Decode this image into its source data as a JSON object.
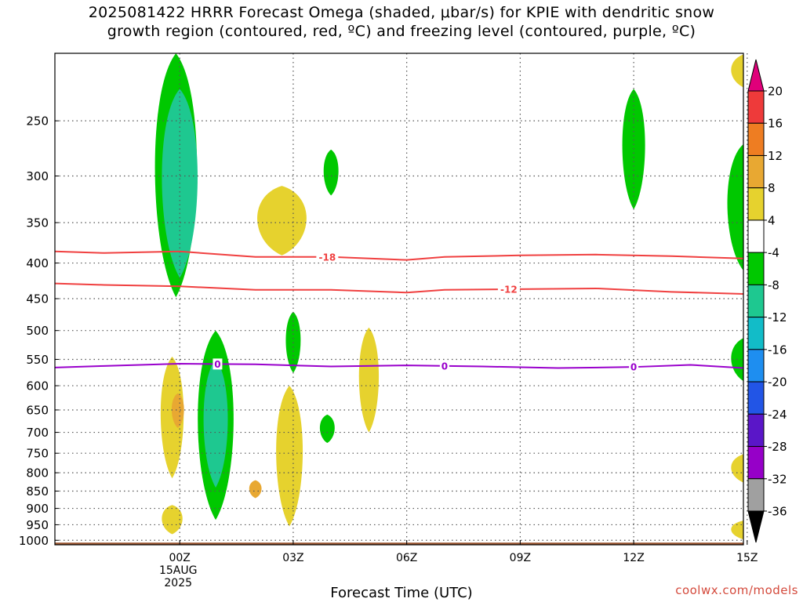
{
  "title": {
    "line1": "2025081422 HRRR Forecast Omega (shaded, μbar/s) for KPIE with dendritic snow",
    "line2": "growth region (contoured, red, ºC) and freezing level (contoured, purple, ºC)"
  },
  "credit": "coolwx.com/models",
  "chart_data": {
    "type": "heatmap",
    "title": "2025081422 HRRR Forecast Omega (shaded, μbar/s) for KPIE with dendritic snow growth region (contoured, red, ºC) and freezing level (contoured, purple, ºC)",
    "xlabel": "Forecast Time (UTC)",
    "ylabel": "",
    "x_range_hours": [
      -3.3,
      14.9
    ],
    "x_ticks": [
      {
        "hour": 0,
        "label": "00Z",
        "sub": [
          "15AUG",
          "2025"
        ]
      },
      {
        "hour": 3,
        "label": "03Z"
      },
      {
        "hour": 6,
        "label": "06Z"
      },
      {
        "hour": 9,
        "label": "09Z"
      },
      {
        "hour": 12,
        "label": "12Z"
      },
      {
        "hour": 15,
        "label": "15Z"
      }
    ],
    "y_scale": "log",
    "y_inverted": true,
    "y_range_mb": [
      200,
      1015
    ],
    "y_ticks": [
      250,
      300,
      350,
      400,
      450,
      500,
      550,
      600,
      650,
      700,
      750,
      800,
      850,
      900,
      950,
      1000
    ],
    "grid": true,
    "colorbar": {
      "levels": [
        -36,
        -32,
        -28,
        -24,
        -20,
        -16,
        -12,
        -8,
        -4,
        4,
        8,
        12,
        16,
        20
      ],
      "labels": [
        "20",
        "16",
        "12",
        "8",
        "4",
        "-4",
        "-8",
        "-12",
        "-16",
        "-20",
        "-24",
        "-28",
        "-32",
        "-36"
      ],
      "colors_top_to_bottom": [
        "#e0007a",
        "#ee3a3a",
        "#ee7d22",
        "#e8a832",
        "#e6d22e",
        "#ffffff",
        "#00c800",
        "#1ec890",
        "#12bcc8",
        "#1e8ef0",
        "#2255e6",
        "#5a16c8",
        "#9600c8",
        "#a0a0a0",
        "#000000"
      ]
    },
    "surface_color": "#9b5530",
    "omega_regions": [
      {
        "value": -6,
        "color": "#00c800",
        "center_hour": -0.1,
        "p_top": 200,
        "p_bottom": 448,
        "note": "green column"
      },
      {
        "value": -10,
        "color": "#1ec890",
        "center_hour": 0.0,
        "p_top": 225,
        "p_bottom": 420
      },
      {
        "value": -6,
        "color": "#00c800",
        "center_hour": 0.95,
        "p_top": 500,
        "p_bottom": 935
      },
      {
        "value": -10,
        "color": "#1ec890",
        "center_hour": 0.95,
        "p_top": 550,
        "p_bottom": 840
      },
      {
        "value": 6,
        "color": "#e6d22e",
        "center_hour": -0.2,
        "p_top": 545,
        "p_bottom": 815
      },
      {
        "value": 9,
        "color": "#e8a832",
        "center_hour": -0.05,
        "p_top": 615,
        "p_bottom": 690
      },
      {
        "value": 6,
        "color": "#e6d22e",
        "center_hour": 2.9,
        "p_top": 600,
        "p_bottom": 955
      },
      {
        "value": 9,
        "color": "#e8a832",
        "center_hour": 2.0,
        "p_top": 820,
        "p_bottom": 870
      },
      {
        "value": 6,
        "color": "#e6d22e",
        "center_hour": 2.7,
        "p_top": 310,
        "p_bottom": 390
      },
      {
        "value": 6,
        "color": "#e6d22e",
        "center_hour": 5.0,
        "p_top": 495,
        "p_bottom": 700
      },
      {
        "value": 6,
        "color": "#e6d22e",
        "center_hour": -0.2,
        "p_top": 890,
        "p_bottom": 980
      },
      {
        "value": -6,
        "color": "#00c800",
        "center_hour": 3.0,
        "p_top": 470,
        "p_bottom": 575
      },
      {
        "value": -6,
        "color": "#00c800",
        "center_hour": 4.0,
        "p_top": 275,
        "p_bottom": 320
      },
      {
        "value": -6,
        "color": "#00c800",
        "center_hour": 3.9,
        "p_top": 660,
        "p_bottom": 725
      },
      {
        "value": -6,
        "color": "#00c800",
        "center_hour": 12.0,
        "p_top": 225,
        "p_bottom": 335
      },
      {
        "value": -6,
        "color": "#00c800",
        "center_hour": 14.9,
        "p_top": 270,
        "p_bottom": 410
      },
      {
        "value": -6,
        "color": "#00c800",
        "center_hour": 15.0,
        "p_top": 510,
        "p_bottom": 595
      },
      {
        "value": 6,
        "color": "#e6d22e",
        "center_hour": 15.0,
        "p_top": 750,
        "p_bottom": 830
      },
      {
        "value": 6,
        "color": "#e6d22e",
        "center_hour": 15.0,
        "p_top": 935,
        "p_bottom": 1000
      },
      {
        "value": 6,
        "color": "#e6d22e",
        "center_hour": 15.0,
        "p_top": 200,
        "p_bottom": 225
      }
    ],
    "contours": [
      {
        "name": "dendritic -18",
        "label": "-18",
        "color": "#f04040",
        "points": [
          [
            -3.3,
            385
          ],
          [
            -2,
            387
          ],
          [
            0,
            385
          ],
          [
            2,
            392
          ],
          [
            4,
            392
          ],
          [
            6,
            396
          ],
          [
            7,
            392
          ],
          [
            9,
            390
          ],
          [
            11,
            389
          ],
          [
            13,
            391
          ],
          [
            14.9,
            394
          ]
        ],
        "label_hour": 3.9
      },
      {
        "name": "dendritic -12",
        "label": "-12",
        "color": "#f04040",
        "points": [
          [
            -3.3,
            428
          ],
          [
            -2,
            430
          ],
          [
            0,
            432
          ],
          [
            2,
            437
          ],
          [
            4,
            437
          ],
          [
            6,
            441
          ],
          [
            7,
            437
          ],
          [
            9,
            436
          ],
          [
            11,
            435
          ],
          [
            13,
            440
          ],
          [
            14.9,
            443
          ]
        ],
        "label_hour": 8.7
      },
      {
        "name": "freezing level",
        "label": "0",
        "color": "#9900cc",
        "points": [
          [
            -3.3,
            565
          ],
          [
            -2,
            562
          ],
          [
            0,
            558
          ],
          [
            2,
            559
          ],
          [
            4,
            563
          ],
          [
            6,
            561
          ],
          [
            8,
            563
          ],
          [
            10,
            566
          ],
          [
            12,
            564
          ],
          [
            13.5,
            560
          ],
          [
            14.9,
            566
          ]
        ],
        "label_hours": [
          1.0,
          7.0,
          12.0
        ]
      }
    ]
  }
}
